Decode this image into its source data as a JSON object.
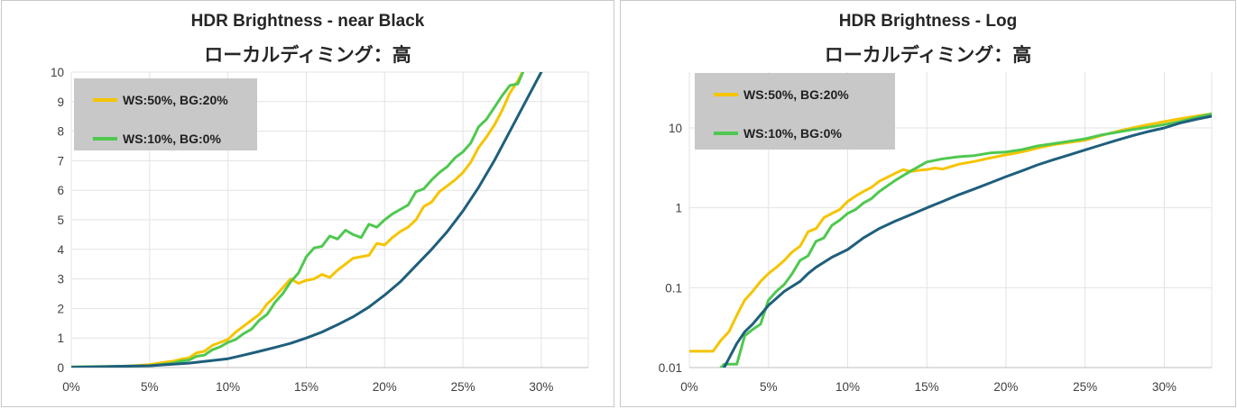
{
  "chart_data": [
    {
      "type": "line",
      "title": "HDR Brightness - near Black",
      "subtitle": "ローカルディミング：高",
      "xlim": [
        0,
        0.33
      ],
      "ylim": [
        0,
        10
      ],
      "x_ticks": [
        "0%",
        "5%",
        "10%",
        "15%",
        "20%",
        "25%",
        "30%"
      ],
      "y_ticks": [
        "0",
        "1",
        "2",
        "3",
        "4",
        "5",
        "6",
        "7",
        "8",
        "9",
        "10"
      ],
      "grid": true,
      "legend": {
        "position": "top-left",
        "background": "#c8c8c8"
      },
      "series": [
        {
          "name": "WS:50%, BG:20%",
          "color": "#f5c400",
          "legend": true,
          "x": [
            0,
            0.02,
            0.03,
            0.04,
            0.05,
            0.055,
            0.06,
            0.065,
            0.07,
            0.075,
            0.08,
            0.085,
            0.09,
            0.095,
            0.1,
            0.105,
            0.11,
            0.115,
            0.12,
            0.125,
            0.13,
            0.135,
            0.14,
            0.145,
            0.15,
            0.155,
            0.16,
            0.165,
            0.17,
            0.175,
            0.18,
            0.185,
            0.19,
            0.195,
            0.2,
            0.205,
            0.21,
            0.215,
            0.22,
            0.225,
            0.23,
            0.235,
            0.24,
            0.245,
            0.25,
            0.255,
            0.26,
            0.265,
            0.27,
            0.275,
            0.28,
            0.285,
            0.29
          ],
          "y": [
            0.01,
            0.02,
            0.04,
            0.06,
            0.1,
            0.14,
            0.18,
            0.22,
            0.28,
            0.33,
            0.5,
            0.55,
            0.75,
            0.85,
            0.95,
            1.2,
            1.4,
            1.6,
            1.8,
            2.15,
            2.4,
            2.7,
            3.0,
            2.85,
            2.95,
            3.0,
            3.15,
            3.05,
            3.3,
            3.5,
            3.7,
            3.75,
            3.8,
            4.2,
            4.15,
            4.4,
            4.6,
            4.75,
            5.0,
            5.45,
            5.6,
            5.95,
            6.15,
            6.35,
            6.6,
            6.95,
            7.45,
            7.8,
            8.2,
            8.7,
            9.3,
            9.7,
            10.2
          ]
        },
        {
          "name": "WS:10%, BG:0%",
          "color": "#4fc850",
          "legend": true,
          "x": [
            0,
            0.05,
            0.06,
            0.065,
            0.07,
            0.075,
            0.08,
            0.085,
            0.09,
            0.095,
            0.1,
            0.105,
            0.11,
            0.115,
            0.12,
            0.125,
            0.13,
            0.135,
            0.14,
            0.145,
            0.15,
            0.155,
            0.16,
            0.165,
            0.17,
            0.175,
            0.18,
            0.185,
            0.19,
            0.195,
            0.2,
            0.205,
            0.21,
            0.215,
            0.22,
            0.225,
            0.23,
            0.235,
            0.24,
            0.245,
            0.25,
            0.255,
            0.26,
            0.265,
            0.27,
            0.275,
            0.28,
            0.285,
            0.29
          ],
          "y": [
            0.02,
            0.06,
            0.12,
            0.15,
            0.22,
            0.25,
            0.38,
            0.42,
            0.6,
            0.7,
            0.85,
            0.95,
            1.15,
            1.3,
            1.6,
            1.8,
            2.2,
            2.5,
            2.9,
            3.2,
            3.75,
            4.05,
            4.1,
            4.45,
            4.35,
            4.65,
            4.5,
            4.4,
            4.85,
            4.75,
            5.0,
            5.2,
            5.35,
            5.5,
            5.95,
            6.05,
            6.35,
            6.6,
            6.8,
            7.1,
            7.3,
            7.6,
            8.15,
            8.4,
            8.8,
            9.2,
            9.55,
            9.6,
            10.2
          ]
        },
        {
          "name": "",
          "color": "#1e5f7c",
          "legend": false,
          "x": [
            0,
            0.05,
            0.075,
            0.1,
            0.11,
            0.12,
            0.13,
            0.14,
            0.15,
            0.16,
            0.17,
            0.18,
            0.19,
            0.2,
            0.21,
            0.22,
            0.23,
            0.24,
            0.25,
            0.26,
            0.27,
            0.28,
            0.29,
            0.3
          ],
          "y": [
            0.01,
            0.06,
            0.15,
            0.3,
            0.42,
            0.55,
            0.68,
            0.82,
            1.0,
            1.2,
            1.45,
            1.72,
            2.05,
            2.45,
            2.9,
            3.45,
            4.0,
            4.6,
            5.3,
            6.1,
            7.0,
            8.0,
            9.0,
            10.0
          ]
        }
      ]
    },
    {
      "type": "line",
      "title": "HDR Brightness - Log",
      "subtitle": "ローカルディミング：高",
      "xlim": [
        0,
        0.33
      ],
      "ylim": [
        0.01,
        50
      ],
      "y_scale": "log",
      "x_ticks": [
        "0%",
        "5%",
        "10%",
        "15%",
        "20%",
        "25%",
        "30%"
      ],
      "y_ticks": [
        "0.01",
        "0.1",
        "1",
        "10"
      ],
      "grid": true,
      "legend": {
        "position": "top-left",
        "background": "#c8c8c8"
      },
      "series": [
        {
          "name": "WS:50%, BG:20%",
          "color": "#f5c400",
          "legend": true,
          "x": [
            0,
            0.015,
            0.02,
            0.025,
            0.03,
            0.035,
            0.04,
            0.045,
            0.05,
            0.055,
            0.06,
            0.065,
            0.07,
            0.075,
            0.08,
            0.085,
            0.09,
            0.095,
            0.1,
            0.105,
            0.11,
            0.115,
            0.12,
            0.125,
            0.13,
            0.135,
            0.14,
            0.145,
            0.15,
            0.155,
            0.16,
            0.17,
            0.18,
            0.19,
            0.2,
            0.21,
            0.22,
            0.23,
            0.24,
            0.25,
            0.26,
            0.27,
            0.28,
            0.29,
            0.3,
            0.31,
            0.32,
            0.33
          ],
          "y": [
            0.016,
            0.016,
            0.022,
            0.028,
            0.045,
            0.07,
            0.09,
            0.12,
            0.15,
            0.18,
            0.22,
            0.28,
            0.33,
            0.5,
            0.55,
            0.75,
            0.85,
            0.95,
            1.2,
            1.4,
            1.6,
            1.8,
            2.15,
            2.4,
            2.7,
            3.0,
            2.85,
            2.95,
            3.0,
            3.15,
            3.05,
            3.5,
            3.8,
            4.2,
            4.6,
            5.0,
            5.6,
            6.15,
            6.6,
            7.0,
            8.0,
            9.0,
            10.0,
            11.0,
            12.0,
            13.0,
            14.0,
            15.0
          ]
        },
        {
          "name": "WS:10%, BG:0%",
          "color": "#4fc850",
          "legend": true,
          "x": [
            0.02,
            0.022,
            0.03,
            0.035,
            0.04,
            0.045,
            0.05,
            0.055,
            0.06,
            0.065,
            0.07,
            0.075,
            0.08,
            0.085,
            0.09,
            0.095,
            0.1,
            0.105,
            0.11,
            0.115,
            0.12,
            0.13,
            0.14,
            0.15,
            0.16,
            0.17,
            0.18,
            0.19,
            0.2,
            0.21,
            0.22,
            0.23,
            0.24,
            0.25,
            0.26,
            0.27,
            0.28,
            0.29,
            0.3,
            0.31,
            0.32,
            0.33
          ],
          "y": [
            0.01,
            0.011,
            0.011,
            0.025,
            0.03,
            0.035,
            0.07,
            0.09,
            0.11,
            0.15,
            0.22,
            0.25,
            0.38,
            0.42,
            0.6,
            0.7,
            0.85,
            0.95,
            1.15,
            1.3,
            1.6,
            2.2,
            2.9,
            3.75,
            4.1,
            4.35,
            4.5,
            4.85,
            5.0,
            5.35,
            5.95,
            6.35,
            6.8,
            7.3,
            8.15,
            8.8,
            9.55,
            10.2,
            11.0,
            12.0,
            13.5,
            15.0
          ]
        },
        {
          "name": "",
          "color": "#1e5f7c",
          "legend": false,
          "x": [
            0.022,
            0.025,
            0.03,
            0.035,
            0.04,
            0.05,
            0.06,
            0.07,
            0.075,
            0.08,
            0.09,
            0.1,
            0.11,
            0.12,
            0.13,
            0.14,
            0.15,
            0.16,
            0.17,
            0.18,
            0.19,
            0.2,
            0.21,
            0.22,
            0.23,
            0.24,
            0.25,
            0.26,
            0.27,
            0.28,
            0.29,
            0.3,
            0.31,
            0.32,
            0.33
          ],
          "y": [
            0.01,
            0.013,
            0.02,
            0.028,
            0.035,
            0.06,
            0.09,
            0.12,
            0.15,
            0.18,
            0.24,
            0.3,
            0.42,
            0.55,
            0.68,
            0.82,
            1.0,
            1.2,
            1.45,
            1.72,
            2.05,
            2.45,
            2.9,
            3.45,
            4.0,
            4.6,
            5.3,
            6.1,
            7.0,
            8.0,
            9.0,
            10.0,
            11.5,
            12.8,
            14.0
          ]
        }
      ]
    }
  ]
}
